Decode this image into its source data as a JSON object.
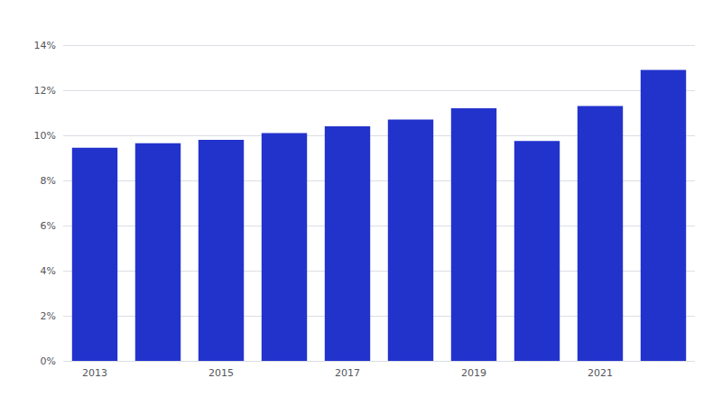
{
  "chart_data": {
    "type": "bar",
    "categories": [
      "2013",
      null,
      "2015",
      null,
      "2017",
      null,
      "2019",
      null,
      "2021",
      null
    ],
    "values": [
      9.45,
      9.65,
      9.8,
      10.1,
      10.4,
      10.7,
      11.2,
      9.75,
      11.3,
      12.9
    ],
    "color": "#2233cc",
    "ylim": [
      0,
      14
    ],
    "yticks": [
      {
        "value": 0,
        "label": "0%"
      },
      {
        "value": 2,
        "label": "2%"
      },
      {
        "value": 4,
        "label": "4%"
      },
      {
        "value": 6,
        "label": "6%"
      },
      {
        "value": 8,
        "label": "8%"
      },
      {
        "value": 10,
        "label": "10%"
      },
      {
        "value": 12,
        "label": "12%"
      },
      {
        "value": 14,
        "label": "14%"
      }
    ],
    "grid": true
  }
}
